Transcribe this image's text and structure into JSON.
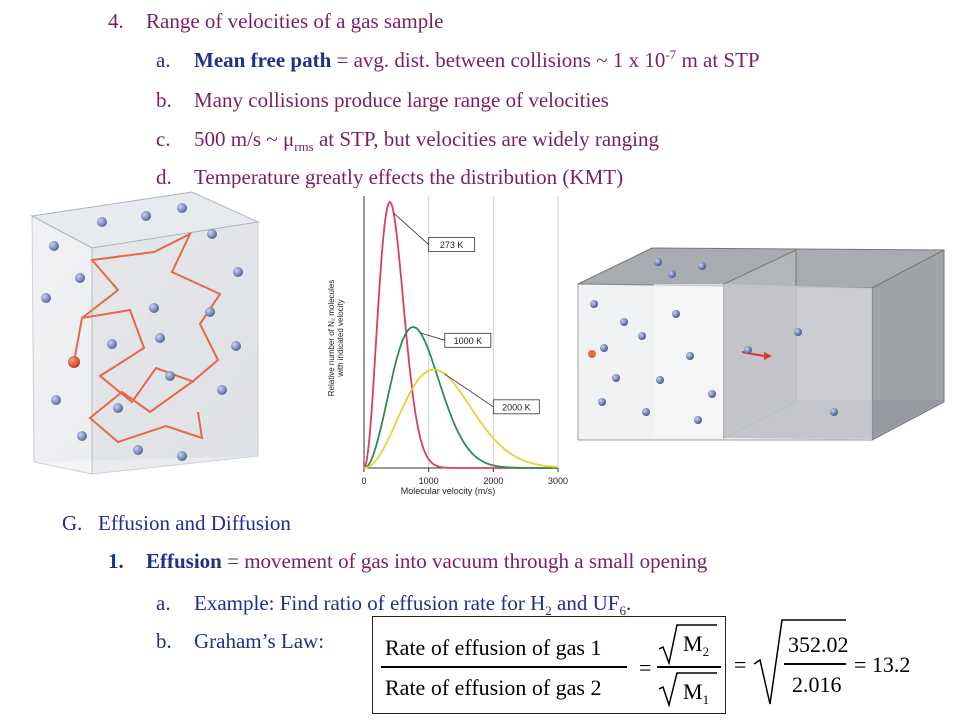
{
  "section4": {
    "num": "4.",
    "title": "Range of velocities of a gas sample",
    "items": [
      {
        "letter": "a.",
        "bold": "Mean free path",
        "text_pre": " = avg. dist. between collisions ~ 1 x 10",
        "sup": "-7",
        "text_post": " m at STP"
      },
      {
        "letter": "b.",
        "text": "Many collisions produce large range of velocities"
      },
      {
        "letter": "c.",
        "text_pre": "500 m/s ~ μ",
        "sub": "rms",
        "text_post": " at STP, but velocities are widely ranging"
      },
      {
        "letter": "d.",
        "text": "Temperature greatly effects the distribution (KMT)"
      }
    ]
  },
  "chart_data": {
    "type": "line",
    "xlabel": "Molecular velocity (m/s)",
    "ylabel_line1": "Relative number of N₂ molecules",
    "ylabel_line2": "with indicated velocity",
    "x_ticks": [
      "0",
      "1000",
      "2000",
      "3000"
    ],
    "xlim": [
      0,
      3000
    ],
    "ylim": [
      0,
      1
    ],
    "grid": true,
    "series": [
      {
        "name": "273 K",
        "color": "#d8405e",
        "peak_x": 400,
        "peak_y": 1.0
      },
      {
        "name": "1000 K",
        "color": "#2e8b57",
        "peak_x": 760,
        "peak_y": 0.53
      },
      {
        "name": "2000 K",
        "color": "#e3d23a",
        "peak_x": 1080,
        "peak_y": 0.37
      }
    ]
  },
  "sectionG": {
    "letter": "G.",
    "title": "Effusion and Diffusion",
    "item1": {
      "num": "1.",
      "bold": "Effusion",
      "text": " = movement of gas into vacuum through a small opening"
    },
    "sub_a": {
      "letter": "a.",
      "text_pre": "Example: Find ratio of effusion rate for H",
      "sub1": "2",
      "text_mid": " and UF",
      "sub2": "6",
      "text_post": "."
    },
    "sub_b": {
      "letter": "b.",
      "text": "Graham’s Law:"
    }
  },
  "formula": {
    "numerator": "Rate of effusion of gas 1",
    "denominator": "Rate of effusion of gas 2",
    "m_top": "M",
    "m_top_sub": "2",
    "m_bottom": "M",
    "m_bottom_sub": "1",
    "value_top": "352.02",
    "value_bottom": "2.016",
    "result": "= 13.2",
    "eq": "="
  },
  "colors": {
    "primary_text": "#7a1f63",
    "navy_text": "#1f2f8c"
  }
}
